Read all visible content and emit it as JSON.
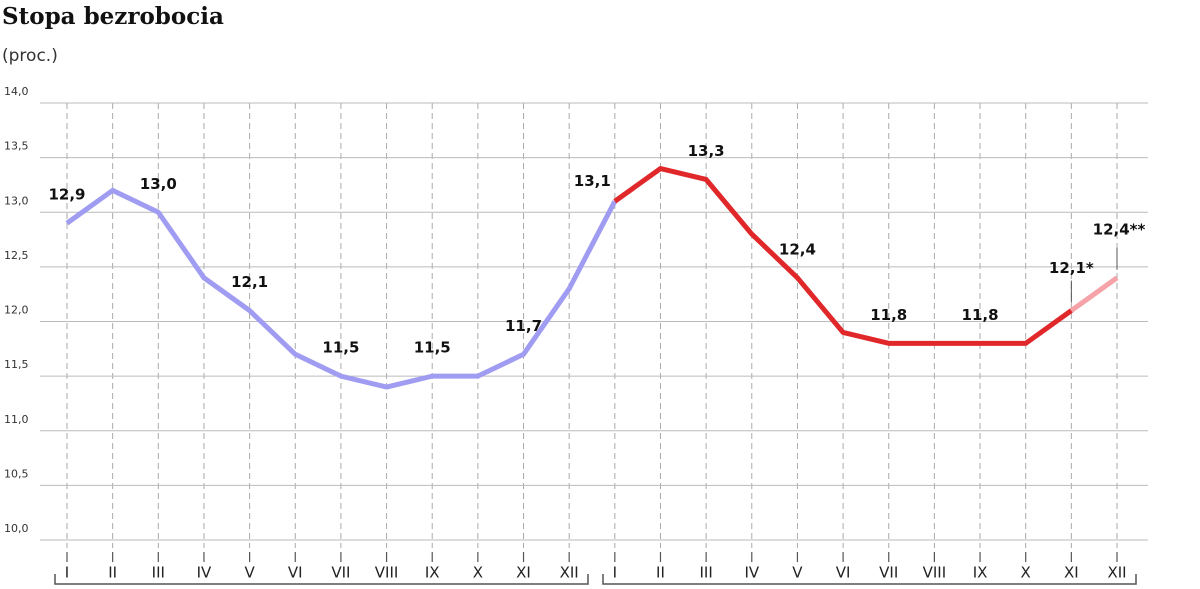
{
  "chart_data": {
    "type": "line",
    "title": "Stopa bezrobocia",
    "subtitle": "(proc.)",
    "categories": [
      "I",
      "II",
      "III",
      "IV",
      "V",
      "VI",
      "VII",
      "VIII",
      "IX",
      "X",
      "XI",
      "XII",
      "I",
      "II",
      "III",
      "IV",
      "V",
      "VI",
      "VII",
      "VIII",
      "IX",
      "X",
      "XI",
      "XII"
    ],
    "series": [
      {
        "color": "#a09cf2",
        "values": [
          12.9,
          13.2,
          13.0,
          12.4,
          12.1,
          11.7,
          11.5,
          11.4,
          11.5,
          11.5,
          11.7,
          12.3,
          13.1,
          null,
          null,
          null,
          null,
          null,
          null,
          null,
          null,
          null,
          null,
          null
        ],
        "value_labels": [
          "12,9",
          null,
          "13,0",
          null,
          "12,1",
          null,
          "11,5",
          null,
          "11,5",
          null,
          "11,7",
          null,
          null,
          null,
          null,
          null,
          null,
          null,
          null,
          null,
          null,
          null,
          null,
          null
        ]
      },
      {
        "color": "#e0282a",
        "values": [
          null,
          null,
          null,
          null,
          null,
          null,
          null,
          null,
          null,
          null,
          null,
          null,
          13.1,
          13.4,
          13.3,
          12.8,
          12.4,
          11.9,
          11.8,
          11.8,
          11.8,
          11.8,
          12.1,
          null
        ],
        "value_labels": [
          null,
          null,
          null,
          null,
          null,
          null,
          null,
          null,
          null,
          null,
          null,
          null,
          "13,1",
          null,
          "13,3",
          null,
          "12,4",
          null,
          "11,8",
          null,
          "11,8",
          null,
          "12,1*",
          null
        ]
      },
      {
        "color": "#f5a3a8",
        "values": [
          null,
          null,
          null,
          null,
          null,
          null,
          null,
          null,
          null,
          null,
          null,
          null,
          null,
          null,
          null,
          null,
          null,
          null,
          null,
          null,
          null,
          null,
          12.1,
          12.4
        ],
        "value_labels": [
          null,
          null,
          null,
          null,
          null,
          null,
          null,
          null,
          null,
          null,
          null,
          null,
          null,
          null,
          null,
          null,
          null,
          null,
          null,
          null,
          null,
          null,
          null,
          "12,4**"
        ]
      }
    ],
    "ylim": [
      10,
      14
    ],
    "yticks": [
      {
        "value": 10,
        "label": "10,0"
      },
      {
        "value": 10.5,
        "label": "10,5"
      },
      {
        "value": 11,
        "label": "11,0"
      },
      {
        "value": 11.5,
        "label": "11,5"
      },
      {
        "value": 12,
        "label": "12,0"
      },
      {
        "value": 12.5,
        "label": "12,5"
      },
      {
        "value": 13,
        "label": "13,0"
      },
      {
        "value": 13.5,
        "label": "13,5"
      },
      {
        "value": 14,
        "label": "14,0"
      }
    ],
    "grid": true
  }
}
